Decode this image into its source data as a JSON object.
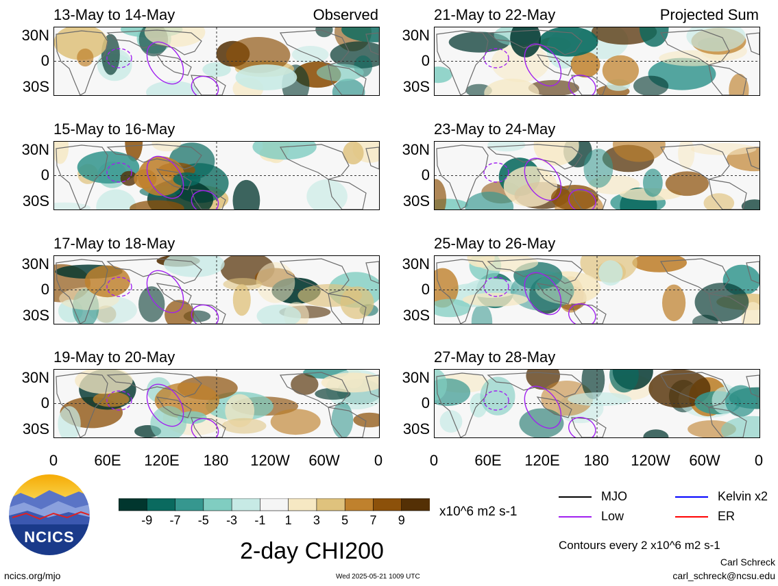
{
  "panels": [
    {
      "title": "13-May to 14-May",
      "tag": "Observed",
      "col": 0,
      "row": 0
    },
    {
      "title": "15-May to 16-May",
      "tag": "",
      "col": 0,
      "row": 1
    },
    {
      "title": "17-May to 18-May",
      "tag": "",
      "col": 0,
      "row": 2
    },
    {
      "title": "19-May to 20-May",
      "tag": "",
      "col": 0,
      "row": 3
    },
    {
      "title": "21-May to 22-May",
      "tag": "Projected Sum",
      "col": 1,
      "row": 0
    },
    {
      "title": "23-May to 24-May",
      "tag": "",
      "col": 1,
      "row": 1
    },
    {
      "title": "25-May to 26-May",
      "tag": "",
      "col": 1,
      "row": 2
    },
    {
      "title": "27-May to 28-May",
      "tag": "",
      "col": 1,
      "row": 3
    }
  ],
  "axes": {
    "y_ticks": [
      "30N",
      "0",
      "30S"
    ],
    "x_ticks": [
      "0",
      "60E",
      "120E",
      "180",
      "120W",
      "60W",
      "0"
    ]
  },
  "colorbar": {
    "labels": [
      "-9",
      "-7",
      "-5",
      "-3",
      "-1",
      "1",
      "3",
      "5",
      "7",
      "9"
    ],
    "colors": [
      "#01362e",
      "#0a6a5f",
      "#36978f",
      "#80cdc1",
      "#c7eae5",
      "#f5f5f5",
      "#f6e8c3",
      "#dfc27d",
      "#bf812d",
      "#8c510a",
      "#543005"
    ],
    "unit": "x10^6 m2 s-1"
  },
  "legend": {
    "items": [
      {
        "label": "MJO",
        "color": "#000000"
      },
      {
        "label": "Kelvin x2",
        "color": "#0000ff"
      },
      {
        "label": "Low",
        "color": "#a020f0"
      },
      {
        "label": "ER",
        "color": "#ff0000"
      }
    ],
    "contour_note": "Contours every 2 x10^6 m2 s-1"
  },
  "main_title": "2-day CHI200",
  "logo": {
    "text": "NCICS"
  },
  "footer": {
    "left": "ncics.org/mjo",
    "center": "Wed 2025-05-21 1009 UTC",
    "author": "Carl Schreck",
    "email": "carl_schreck@ncsu.edu"
  },
  "chart_data": {
    "type": "heatmap",
    "variable": "2-day CHI200",
    "units": "x10^6 m2 s-1",
    "levels": [
      -9,
      -7,
      -5,
      -3,
      -1,
      1,
      3,
      5,
      7,
      9
    ],
    "ylim": [
      "30S",
      "30N"
    ],
    "xlim": [
      "0",
      "0"
    ],
    "panels": [
      "13-May to 14-May",
      "15-May to 16-May",
      "17-May to 18-May",
      "19-May to 20-May",
      "21-May to 22-May",
      "23-May to 24-May",
      "25-May to 26-May",
      "27-May to 28-May"
    ]
  }
}
